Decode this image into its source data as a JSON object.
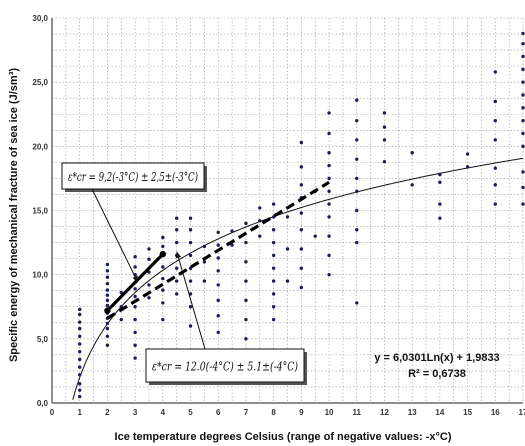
{
  "chart_data": {
    "type": "scatter",
    "xlabel": "Ice temperature degrees Celsius (range of negative values: -x°C)",
    "ylabel": "Specific energy of mechanical fracture of sea ice (J/sm³)",
    "xlim": [
      0,
      17
    ],
    "ylim": [
      0,
      30
    ],
    "x_ticks": [
      "0",
      "1",
      "2",
      "3",
      "4",
      "5",
      "6",
      "7",
      "8",
      "9",
      "10",
      "11",
      "12",
      "13",
      "14",
      "15",
      "16",
      "17"
    ],
    "y_ticks": [
      "0,0",
      "5,0",
      "10,0",
      "15,0",
      "20,0",
      "25,0",
      "30,0"
    ],
    "grid": true,
    "trendline": {
      "type": "logarithmic",
      "a": 6.0301,
      "b": 1.9833,
      "equation": "y = 6,0301Ln(x) + 1,9833",
      "r2": "R² = 0,6738"
    },
    "segment_lines": [
      {
        "style": "solid",
        "points": [
          [
            2,
            7.2
          ],
          [
            4,
            11.6
          ]
        ]
      },
      {
        "style": "dashed",
        "points": [
          [
            2,
            6.6
          ],
          [
            10,
            17.2
          ]
        ]
      }
    ],
    "annotations": [
      {
        "label": "ε*cr = 9,2(-3°C) ± 2,5±(-3°C)",
        "arrow_to": [
          3.1,
          9.4
        ]
      },
      {
        "label": "ε*cr = 12.0(-4°C) ± 5.1±(-4°C)",
        "arrow_to": [
          4.5,
          11.8
        ]
      }
    ],
    "points": [
      [
        1,
        0.5
      ],
      [
        1,
        1.0
      ],
      [
        1,
        1.5
      ],
      [
        1,
        2.2
      ],
      [
        1,
        2.8
      ],
      [
        1,
        3.4
      ],
      [
        1,
        4.0
      ],
      [
        1,
        4.6
      ],
      [
        1,
        5.2
      ],
      [
        1,
        5.8
      ],
      [
        1,
        6.3
      ],
      [
        1,
        6.9
      ],
      [
        1,
        7.3
      ],
      [
        2,
        4.5
      ],
      [
        2,
        5.2
      ],
      [
        2,
        5.8
      ],
      [
        2,
        6.2
      ],
      [
        2,
        6.6
      ],
      [
        2,
        7.0
      ],
      [
        2,
        7.3
      ],
      [
        2,
        7.6
      ],
      [
        2,
        8.0
      ],
      [
        2,
        8.4
      ],
      [
        2,
        8.8
      ],
      [
        2,
        9.3
      ],
      [
        2,
        9.8
      ],
      [
        2,
        10.3
      ],
      [
        2,
        10.8
      ],
      [
        2.5,
        6.5
      ],
      [
        2.5,
        7.5
      ],
      [
        2.5,
        8.6
      ],
      [
        3,
        3.5
      ],
      [
        3,
        4.5
      ],
      [
        3,
        5.5
      ],
      [
        3,
        6.5
      ],
      [
        3,
        7.5
      ],
      [
        3,
        8.3
      ],
      [
        3,
        8.9
      ],
      [
        3,
        9.4
      ],
      [
        3,
        10.0
      ],
      [
        3,
        10.6
      ],
      [
        3,
        11.4
      ],
      [
        3.5,
        8.2
      ],
      [
        3.5,
        9.2
      ],
      [
        3.5,
        10.2
      ],
      [
        3.5,
        11.2
      ],
      [
        3.5,
        12.0
      ],
      [
        4,
        6.5
      ],
      [
        4,
        7.8
      ],
      [
        4,
        8.8
      ],
      [
        4,
        9.7
      ],
      [
        4,
        10.6
      ],
      [
        4,
        11.5
      ],
      [
        4,
        12.2
      ],
      [
        4,
        12.9
      ],
      [
        4.5,
        8.5
      ],
      [
        4.5,
        9.5
      ],
      [
        4.5,
        10.5
      ],
      [
        4.5,
        11.5
      ],
      [
        4.5,
        12.5
      ],
      [
        4.5,
        13.5
      ],
      [
        4.5,
        14.4
      ],
      [
        5,
        6.0
      ],
      [
        5,
        7.5
      ],
      [
        5,
        8.5
      ],
      [
        5,
        9.5
      ],
      [
        5,
        10.5
      ],
      [
        5,
        11.5
      ],
      [
        5,
        12.5
      ],
      [
        5,
        13.5
      ],
      [
        5,
        14.4
      ],
      [
        5.5,
        9.5
      ],
      [
        5.5,
        11.0
      ],
      [
        5.5,
        12.2
      ],
      [
        6,
        5.5
      ],
      [
        6,
        6.8
      ],
      [
        6,
        8.0
      ],
      [
        6,
        9.2
      ],
      [
        6,
        10.3
      ],
      [
        6,
        11.3
      ],
      [
        6,
        12.3
      ],
      [
        6,
        13.3
      ],
      [
        6.5,
        12.3
      ],
      [
        6.5,
        13.4
      ],
      [
        7,
        5.0
      ],
      [
        7,
        6.5
      ],
      [
        7,
        8.0
      ],
      [
        7,
        9.5
      ],
      [
        7,
        11.0
      ],
      [
        7,
        12.5
      ],
      [
        7,
        14.0
      ],
      [
        7.5,
        13.0
      ],
      [
        7.5,
        14.2
      ],
      [
        7.5,
        15.2
      ],
      [
        8,
        6.5
      ],
      [
        8,
        7.5
      ],
      [
        8,
        8.5
      ],
      [
        8,
        9.5
      ],
      [
        8,
        10.5
      ],
      [
        8,
        11.5
      ],
      [
        8,
        12.5
      ],
      [
        8,
        13.5
      ],
      [
        8,
        14.5
      ],
      [
        8,
        15.5
      ],
      [
        8.5,
        9.5
      ],
      [
        8.5,
        12.0
      ],
      [
        8.5,
        14.5
      ],
      [
        9,
        9.0
      ],
      [
        9,
        10.5
      ],
      [
        9,
        12.0
      ],
      [
        9,
        13.5
      ],
      [
        9,
        14.8
      ],
      [
        9,
        16.0
      ],
      [
        9,
        17.0
      ],
      [
        9,
        18.4
      ],
      [
        9,
        20.3
      ],
      [
        9.5,
        13.0
      ],
      [
        9.5,
        16.5
      ],
      [
        10,
        10.0
      ],
      [
        10,
        11.5
      ],
      [
        10,
        13.0
      ],
      [
        10,
        14.5
      ],
      [
        10,
        15.5
      ],
      [
        10,
        16.5
      ],
      [
        10,
        17.5
      ],
      [
        10,
        18.5
      ],
      [
        10,
        19.5
      ],
      [
        10,
        21.0
      ],
      [
        10,
        22.6
      ],
      [
        11,
        7.8
      ],
      [
        11,
        12.5
      ],
      [
        11,
        13.5
      ],
      [
        11,
        15.0
      ],
      [
        11,
        16.5
      ],
      [
        11,
        17.5
      ],
      [
        11,
        19.0
      ],
      [
        11,
        20.5
      ],
      [
        11,
        22.0
      ],
      [
        11,
        23.6
      ],
      [
        12,
        18.8
      ],
      [
        12,
        20.5
      ],
      [
        12,
        21.5
      ],
      [
        12,
        22.6
      ],
      [
        13,
        17.0
      ],
      [
        13,
        19.5
      ],
      [
        14,
        14.4
      ],
      [
        14,
        15.5
      ],
      [
        14,
        17.2
      ],
      [
        14,
        17.8
      ],
      [
        15,
        18.4
      ],
      [
        15,
        19.4
      ],
      [
        16,
        15.5
      ],
      [
        16,
        17.0
      ],
      [
        16,
        18.3
      ],
      [
        16,
        20.5
      ],
      [
        16,
        22.0
      ],
      [
        16,
        23.5
      ],
      [
        16,
        25.8
      ],
      [
        17,
        15.5
      ],
      [
        17,
        16.8
      ],
      [
        17,
        18.0
      ],
      [
        17,
        20.0
      ],
      [
        17,
        21.0
      ],
      [
        17,
        22.0
      ],
      [
        17,
        23.0
      ],
      [
        17,
        24.0
      ],
      [
        17,
        25.0
      ],
      [
        17,
        26.0
      ],
      [
        17,
        27.0
      ],
      [
        17,
        28.0
      ],
      [
        17,
        28.8
      ],
      [
        17.5,
        24.5
      ]
    ]
  }
}
